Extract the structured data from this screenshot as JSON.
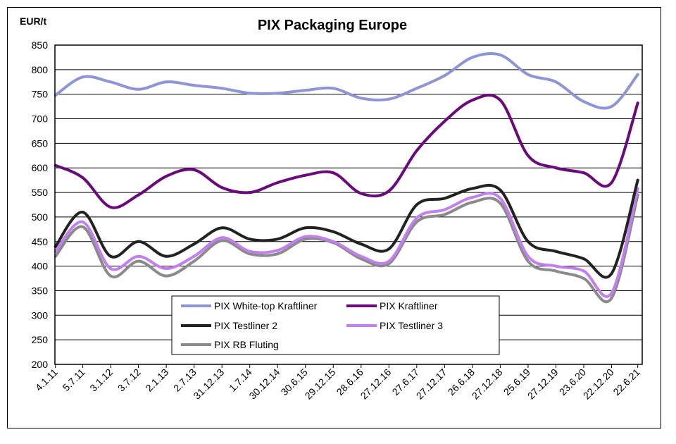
{
  "chart_data": {
    "type": "line",
    "title": "PIX Packaging Europe",
    "ylabel": "EUR/t",
    "xlabel": "",
    "ylim": [
      200,
      850
    ],
    "yticks": [
      200,
      250,
      300,
      350,
      400,
      450,
      500,
      550,
      600,
      650,
      700,
      750,
      800,
      850
    ],
    "grid": "horizontal",
    "legend_position": "bottom-center",
    "x_labels": [
      "4.1.11",
      "5.7.11",
      "3.1.12",
      "3.7.12",
      "2.1.13",
      "2.7.13",
      "31.12.13",
      "1.7.14",
      "30.12.14",
      "30.6.15",
      "29.12.15",
      "28.6.16",
      "27.12.16",
      "27.6.17",
      "27.12.17",
      "26.6.18",
      "27.12.18",
      "25.6.19",
      "27.12.19",
      "23.6.20",
      "22.12.20",
      "22.6.21"
    ],
    "x": [
      2011.01,
      2011.5,
      2012.0,
      2012.5,
      2013.0,
      2013.5,
      2014.0,
      2014.5,
      2015.0,
      2015.5,
      2016.0,
      2016.5,
      2017.0,
      2017.5,
      2018.0,
      2018.5,
      2019.0,
      2019.5,
      2020.0,
      2020.5,
      2021.0,
      2021.47
    ],
    "xlim": [
      2011.0,
      2021.55
    ],
    "series": [
      {
        "name": "PIX White-top Kraftliner",
        "color": "#8f94d4",
        "values": [
          748,
          785,
          775,
          760,
          775,
          768,
          762,
          752,
          752,
          758,
          762,
          742,
          740,
          762,
          788,
          825,
          830,
          790,
          775,
          735,
          725,
          790
        ]
      },
      {
        "name": "PIX Kraftliner",
        "color": "#6a0a7a",
        "values": [
          605,
          580,
          520,
          545,
          583,
          596,
          560,
          550,
          570,
          585,
          590,
          548,
          553,
          635,
          695,
          738,
          738,
          625,
          600,
          590,
          570,
          732
        ]
      },
      {
        "name": "PIX Testliner 2",
        "color": "#222222",
        "values": [
          440,
          510,
          420,
          450,
          420,
          445,
          478,
          455,
          455,
          478,
          470,
          445,
          435,
          525,
          538,
          558,
          555,
          450,
          430,
          415,
          385,
          575
        ]
      },
      {
        "name": "PIX Testliner 3",
        "color": "#c17ff0",
        "values": [
          430,
          490,
          395,
          420,
          395,
          420,
          458,
          430,
          432,
          460,
          450,
          420,
          410,
          498,
          515,
          540,
          538,
          420,
          400,
          390,
          345,
          558
        ]
      },
      {
        "name": "PIX RB Fluting",
        "color": "#8a8a8a",
        "values": [
          420,
          480,
          380,
          410,
          380,
          410,
          452,
          425,
          425,
          455,
          448,
          415,
          405,
          490,
          505,
          530,
          528,
          410,
          390,
          375,
          335,
          545
        ]
      }
    ]
  }
}
